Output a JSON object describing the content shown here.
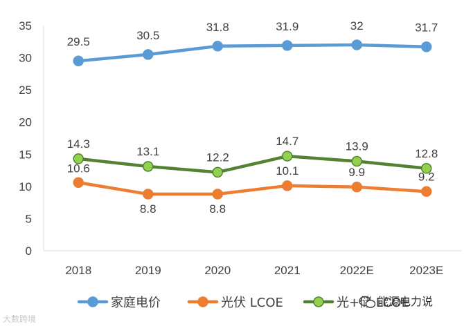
{
  "chart_data": {
    "type": "line",
    "categories": [
      "2018",
      "2019",
      "2020",
      "2021",
      "2022E",
      "2023E"
    ],
    "ylim": [
      0,
      35
    ],
    "yticks": [
      "0",
      "5",
      "10",
      "15",
      "20",
      "25",
      "30",
      "35"
    ],
    "series": [
      {
        "name": "家庭电价",
        "color": "#5B9BD5",
        "marker_fill": "#5B9BD5",
        "marker_stroke": "#5B9BD5",
        "values": [
          29.5,
          30.5,
          31.8,
          31.9,
          32,
          31.7
        ],
        "labels": [
          "29.5",
          "30.5",
          "31.8",
          "31.9",
          "32",
          "31.7"
        ]
      },
      {
        "name": "光伏 LCOE",
        "color": "#ED7D31",
        "marker_fill": "#ED7D31",
        "marker_stroke": "#ED7D31",
        "values": [
          10.6,
          8.8,
          8.8,
          10.1,
          9.9,
          9.2
        ],
        "labels": [
          "10.6",
          "8.8",
          "8.8",
          "10.1",
          "9.9",
          "9.2"
        ]
      },
      {
        "name": "光+储 LCOE",
        "color": "#548235",
        "marker_fill": "#92D050",
        "marker_stroke": "#548235",
        "values": [
          14.3,
          13.1,
          12.2,
          14.7,
          13.9,
          12.8
        ],
        "labels": [
          "14.3",
          "13.1",
          "12.2",
          "14.7",
          "13.9",
          "12.8"
        ]
      }
    ],
    "title": "",
    "xlabel": "",
    "ylabel": "",
    "grid": false,
    "legend_position": "bottom"
  },
  "watermark": {
    "right": "能源电力说",
    "left": "大数跨境"
  }
}
